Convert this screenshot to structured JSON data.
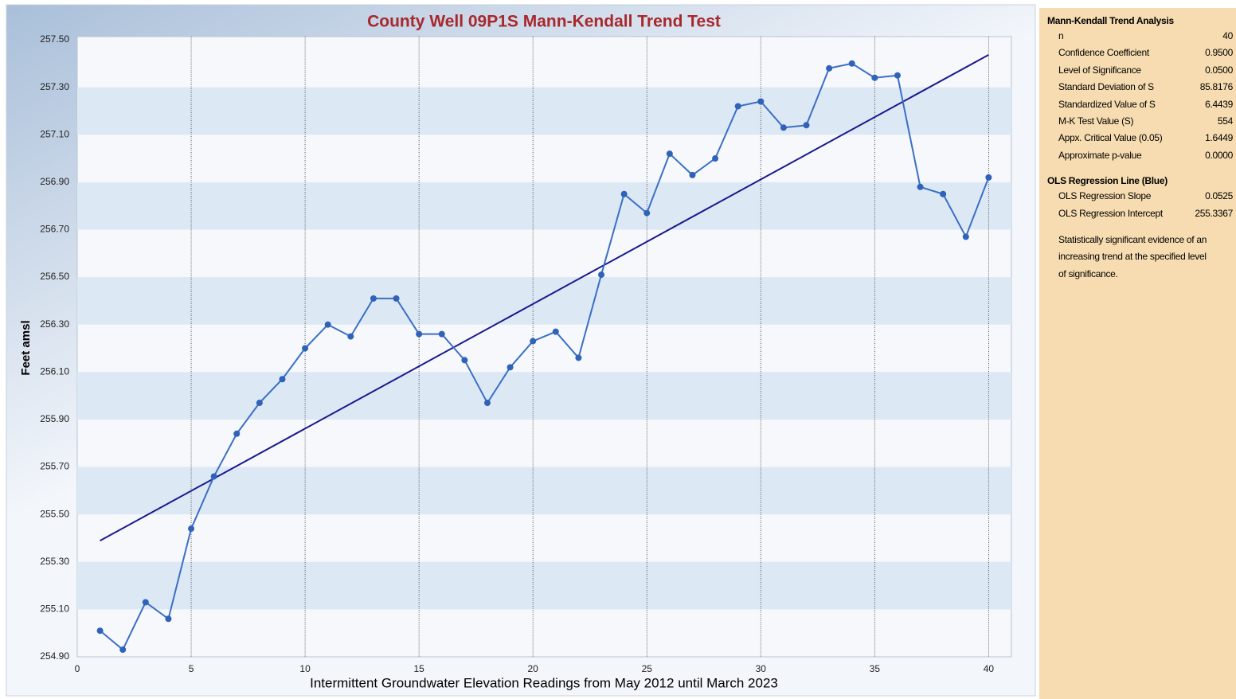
{
  "chart_data": {
    "type": "line",
    "title": "County Well 09P1S Mann-Kendall Trend Test",
    "x_label": "Intermittent Groundwater Elevation Readings from May 2012 until March 2023",
    "y_label": "Feet amsl",
    "x": [
      1,
      2,
      3,
      4,
      5,
      6,
      7,
      8,
      9,
      10,
      11,
      12,
      13,
      14,
      15,
      16,
      17,
      18,
      19,
      20,
      21,
      22,
      23,
      24,
      25,
      26,
      27,
      28,
      29,
      30,
      31,
      32,
      33,
      34,
      35,
      36,
      37,
      38,
      39,
      40
    ],
    "series": [
      {
        "color": "#3a6fc6",
        "values": [
          255.01,
          254.93,
          255.13,
          255.06,
          255.44,
          255.66,
          255.84,
          255.97,
          256.07,
          256.2,
          256.3,
          256.25,
          256.41,
          256.41,
          256.26,
          256.26,
          256.15,
          255.97,
          256.12,
          256.23,
          256.27,
          256.16,
          256.51,
          256.85,
          256.77,
          257.02,
          256.93,
          257.0,
          257.22,
          257.24,
          257.13,
          257.14,
          257.38,
          257.4,
          257.34,
          257.35,
          256.88,
          256.85,
          256.67,
          256.92
        ]
      }
    ],
    "regression": {
      "color": "#1a1a8c",
      "slope": 0.0525,
      "intercept": 255.3367
    },
    "xlim": [
      0,
      41
    ],
    "ylim": [
      254.9,
      257.5
    ],
    "xticks": [
      0,
      5,
      10,
      15,
      20,
      25,
      30,
      35,
      40
    ],
    "yticks": [
      {
        "value": 254.9,
        "label": "254.90"
      },
      {
        "value": 255.1,
        "label": "255.10"
      },
      {
        "value": 255.3,
        "label": "255.30"
      },
      {
        "value": 255.5,
        "label": "255.50"
      },
      {
        "value": 255.7,
        "label": "255.70"
      },
      {
        "value": 255.9,
        "label": "255.90"
      },
      {
        "value": 256.1,
        "label": "256.10"
      },
      {
        "value": 256.3,
        "label": "256.30"
      },
      {
        "value": 256.5,
        "label": "256.50"
      },
      {
        "value": 256.7,
        "label": "256.70"
      },
      {
        "value": 256.9,
        "label": "256.90"
      },
      {
        "value": 257.1,
        "label": "257.10"
      },
      {
        "value": 257.3,
        "label": "257.30"
      },
      {
        "value": 257.5,
        "label": "257.50"
      }
    ],
    "grid": true
  },
  "panel": {
    "mk_title": "Mann-Kendall Trend Analysis",
    "mk_rows": [
      [
        "n",
        "40"
      ],
      [
        "Confidence Coefficient",
        "0.9500"
      ],
      [
        "Level of Significance",
        "0.0500"
      ],
      [
        "Standard Deviation of S",
        "85.8176"
      ],
      [
        "Standardized Value of S",
        "6.4439"
      ],
      [
        "M-K Test Value (S)",
        "554"
      ],
      [
        "Appx. Critical Value (0.05)",
        "1.6449"
      ],
      [
        "Approximate p-value",
        "0.0000"
      ]
    ],
    "ols_title": "OLS Regression Line (Blue)",
    "ols_rows": [
      "OLS Regression Slope",
      "OLS Regression Intercept"
    ],
    "note": "Statistically significant evidence of an increasing trend at the specified level of significance."
  }
}
